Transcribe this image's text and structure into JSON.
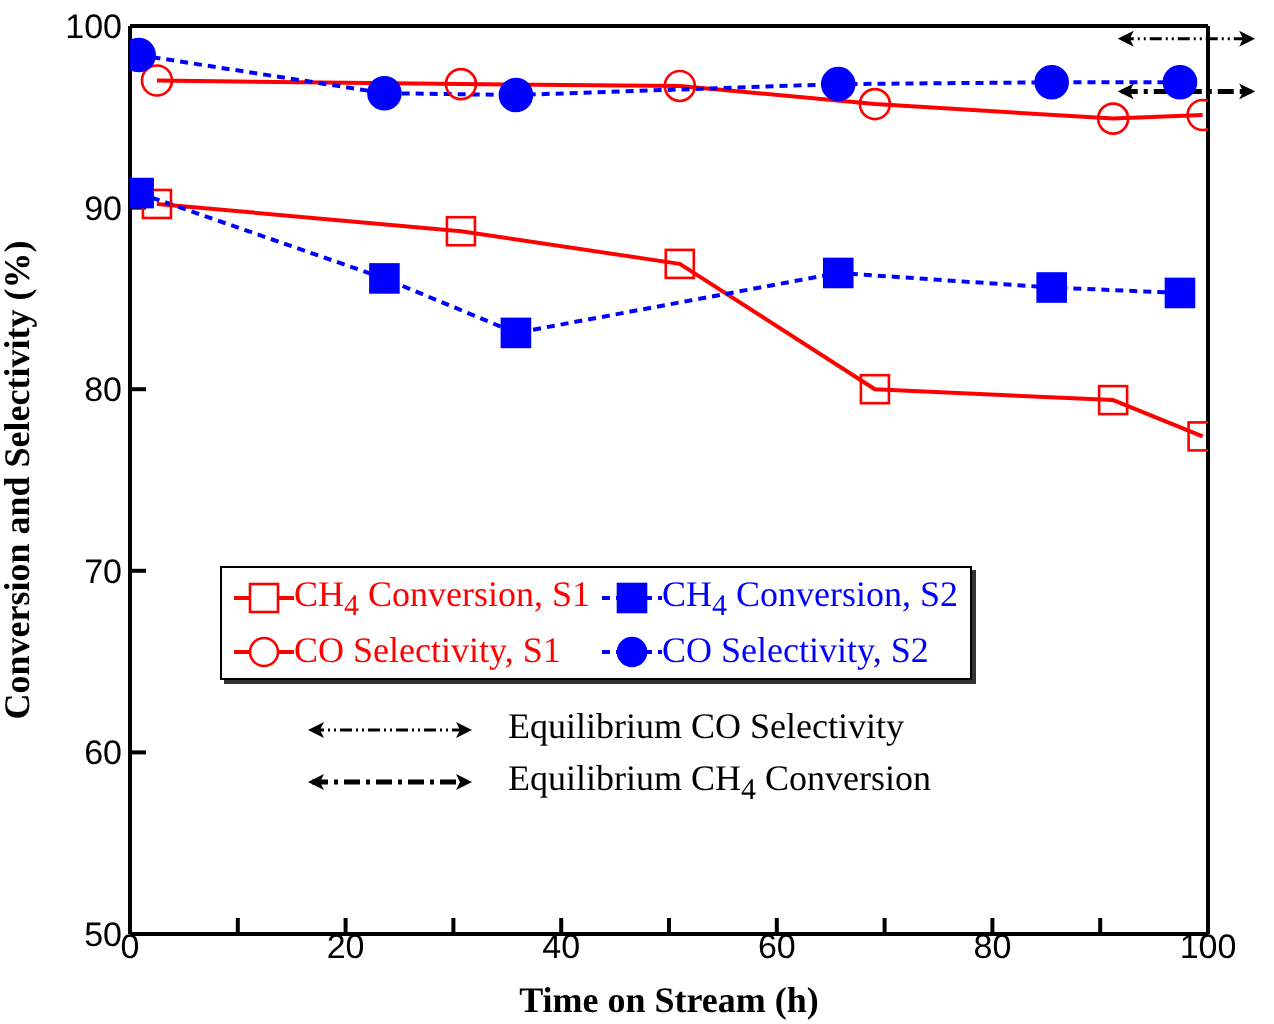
{
  "chart_data": {
    "type": "line",
    "xlabel": "Time on Stream (h)",
    "ylabel": "Conversion and Selectivity (%)",
    "xlim": [
      0,
      100
    ],
    "xticks": [
      0,
      {
        "value": 10,
        "label": null
      },
      20,
      {
        "value": 30,
        "label": null
      },
      40,
      {
        "value": 50,
        "label": null
      },
      60,
      {
        "value": 70,
        "label": null
      },
      80,
      {
        "value": 90,
        "label": null
      },
      100
    ],
    "ylim": [
      50,
      100
    ],
    "yticks": [
      50,
      60,
      70,
      80,
      90,
      100
    ],
    "legend": "left",
    "series": [
      {
        "name": "CH$_{4}$ Conversion, S1",
        "color": "#ff0000",
        "marker": "square",
        "line_style": "solid",
        "x": [
          2.5,
          30.7,
          51,
          69.1,
          91.2,
          99.5
        ],
        "values": [
          90.2,
          88.7,
          86.9,
          80.0,
          79.4,
          77.4
        ]
      },
      {
        "name": "CH$_{4}$ Conversion, S2",
        "color": "#0000ff",
        "marker": "square",
        "line_style": "dashed",
        "x": [
          0.8,
          23.6,
          35.8,
          65.7,
          85.5,
          97.4
        ],
        "values": [
          90.8,
          86.1,
          83.1,
          86.4,
          85.6,
          85.3
        ]
      },
      {
        "name": "CO Selectivity, S1",
        "color": "#ff0000",
        "marker": "circle",
        "line_style": "solid",
        "x": [
          2.5,
          30.7,
          51,
          69.1,
          91.2,
          99.5
        ],
        "values": [
          97.0,
          96.8,
          96.7,
          95.7,
          94.9,
          95.1
        ]
      },
      {
        "name": "CO Selectivity, S2",
        "color": "#0000ff",
        "marker": "circle",
        "line_style": "dashed",
        "x": [
          0.8,
          23.6,
          35.8,
          65.7,
          85.5,
          97.4
        ],
        "values": [
          98.4,
          96.3,
          96.2,
          96.8,
          96.9,
          96.9
        ]
      }
    ],
    "ref_lines": [
      {
        "axis": "y",
        "value": 99.3,
        "label": "Equilibrium CO Selectivity",
        "color": "#000000",
        "line_style": "dash-dot-dot"
      },
      {
        "axis": "y",
        "value": 96.4,
        "label": "Equilibrium CH$_{4}$ Conversion",
        "color": "#000000",
        "line_style": "dash-dot"
      }
    ]
  }
}
